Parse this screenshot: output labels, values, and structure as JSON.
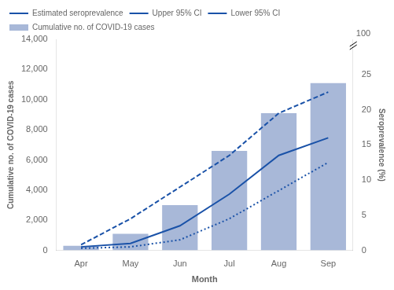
{
  "chart_data": {
    "type": "bar",
    "xlabel": "Month",
    "ylabel": "Cumulative no. of COVID-19 cases",
    "y2label": "Seroprevalence (%)",
    "categories": [
      "Apr",
      "May",
      "Jun",
      "Jul",
      "Aug",
      "Sep"
    ],
    "series": [
      {
        "name": "Cumulative no. of COVID-19 cases",
        "type": "bar",
        "color": "#a8b8d8",
        "values": [
          300,
          1100,
          3000,
          6600,
          9100,
          11100
        ]
      },
      {
        "name": "Estimated seroprevalence",
        "type": "line",
        "color": "#1a52a8",
        "line_style": "solid",
        "axis": "y2",
        "values": [
          0.5,
          1.0,
          3.5,
          8.0,
          13.5,
          16.0
        ]
      },
      {
        "name": "Upper 95% CI",
        "type": "line",
        "color": "#1a52a8",
        "line_style": "dashed",
        "axis": "y2",
        "values": [
          0.8,
          4.5,
          9.0,
          13.5,
          19.5,
          22.5
        ]
      },
      {
        "name": "Lower 95% CI",
        "type": "line",
        "color": "#1a52a8",
        "line_style": "dotted",
        "axis": "y2",
        "values": [
          0.3,
          0.5,
          1.5,
          4.5,
          8.5,
          12.5
        ]
      }
    ],
    "ylim": [
      0,
      14000
    ],
    "yticks": [
      0,
      {
        "value": 2000,
        "label": "2,000"
      },
      {
        "value": 4000,
        "label": "4,000"
      },
      {
        "value": 6000,
        "label": "6,000"
      },
      {
        "value": 8000,
        "label": "8,000"
      },
      {
        "value": 10000,
        "label": "10,000"
      },
      {
        "value": 12000,
        "label": "12,000"
      },
      {
        "value": 14000,
        "label": "14,000"
      }
    ],
    "y2lim": [
      0,
      30
    ],
    "y2ticks": [
      0,
      5,
      10,
      15,
      20,
      25
    ],
    "annotations": [
      {
        "text": "100"
      }
    ],
    "grid": false,
    "legend": "upper left"
  }
}
